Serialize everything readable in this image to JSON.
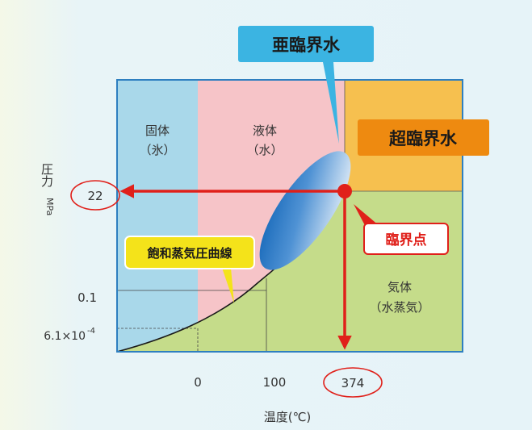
{
  "regions": {
    "solid_line1": "固体",
    "solid_line2": "（氷）",
    "liquid_line1": "液体",
    "liquid_line2": "（水）",
    "gas_line1": "気体",
    "gas_line2": "（水蒸気）"
  },
  "callouts": {
    "subcritical": "亜臨界水",
    "supercritical": "超臨界水",
    "critical_point": "臨界点",
    "saturation_curve": "飽和蒸気圧曲線"
  },
  "axes": {
    "y_label": "圧力",
    "y_unit": "MPa",
    "x_label": "温度(℃)",
    "y_ticks": [
      "22",
      "0.1",
      "6.1×10"
    ],
    "y_tick_exponent": "-4",
    "x_ticks": [
      "0",
      "100",
      "374"
    ]
  },
  "colors": {
    "solid": "#a9d8ea",
    "liquid": "#f6c4c8",
    "gas": "#c5dc8a",
    "supercritical": "#f6c04f",
    "frame": "#2e7fc0",
    "arrow": "#e0201a",
    "callout_blue": "#3bb4e2",
    "callout_orange": "#ee8a10",
    "callout_yellow": "#f4e31a"
  }
}
